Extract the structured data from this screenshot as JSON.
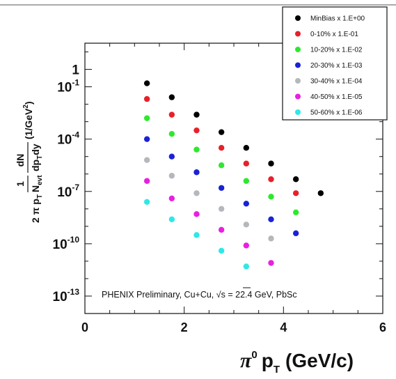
{
  "chart_data": {
    "type": "scatter",
    "xlabel_main": "π",
    "xlabel_sup": "0",
    "xlabel_p": "p",
    "xlabel_sub": "T",
    "xlabel_unit": "(GeV/c)",
    "ylabel": {
      "one": "1",
      "two_pi_pt": "2 π p",
      "sub_t": "T",
      "n_evt": "N",
      "sub_evt": "evt",
      "dn": "dN",
      "dpt_dy": "dp",
      "sub_t2": "T",
      "dy": "dy",
      "unit": "(1/GeV",
      "unit_sup": "2",
      "unit_close": ")"
    },
    "x_ticks": [
      "0",
      "2",
      "4",
      "6"
    ],
    "x_tick_values": [
      0,
      2,
      4,
      6
    ],
    "y_ticks": [
      {
        "base": "1",
        "exp": "",
        "value": 0
      },
      {
        "base": "10",
        "exp": "-1",
        "value": -1
      },
      {
        "base": "10",
        "exp": "-4",
        "value": -4
      },
      {
        "base": "10",
        "exp": "-7",
        "value": -7
      },
      {
        "base": "10",
        "exp": "-10",
        "value": -10
      },
      {
        "base": "10",
        "exp": "-13",
        "value": -13
      }
    ],
    "xlim": [
      0,
      6
    ],
    "ylim_log10": [
      -14,
      1.5
    ],
    "y_scale": "log",
    "legend_position": "top-right",
    "annotation": {
      "pre": "PHENIX Preliminary, Cu+Cu, ",
      "sqrt_s": "√s",
      "post": " = 22.4 GeV, PbSc"
    },
    "x": [
      1.25,
      1.75,
      2.25,
      2.75,
      3.25,
      3.75,
      4.25,
      4.75
    ],
    "series": [
      {
        "name": "MinBias x 1.E+00",
        "color": "#000000",
        "log10_y": [
          -0.8,
          -1.6,
          -2.6,
          -3.6,
          -4.5,
          -5.4,
          -6.3,
          -7.1
        ]
      },
      {
        "name": "0-10% x 1.E-01",
        "color": "#e8202a",
        "log10_y": [
          -1.7,
          -2.6,
          -3.5,
          -4.5,
          -5.4,
          -6.3,
          -7.1
        ]
      },
      {
        "name": "10-20% x 1.E-02",
        "color": "#2ee82e",
        "log10_y": [
          -2.8,
          -3.7,
          -4.6,
          -5.5,
          -6.4,
          -7.3,
          -8.2
        ]
      },
      {
        "name": "20-30% x 1.E-03",
        "color": "#1a22d4",
        "log10_y": [
          -4.0,
          -5.0,
          -5.9,
          -6.8,
          -7.7,
          -8.6,
          -9.4
        ]
      },
      {
        "name": "30-40% x 1.E-04",
        "color": "#b4b8bc",
        "log10_y": [
          -5.2,
          -6.1,
          -7.1,
          -8.0,
          -8.9,
          -9.7
        ]
      },
      {
        "name": "40-50% x 1.E-05",
        "color": "#e820e0",
        "log10_y": [
          -6.4,
          -7.4,
          -8.3,
          -9.2,
          -10.1,
          -11.1
        ]
      },
      {
        "name": "50-60% x 1.E-06",
        "color": "#2ee8e8",
        "log10_y": [
          -7.6,
          -8.6,
          -9.5,
          -10.4,
          -11.3
        ]
      }
    ]
  }
}
